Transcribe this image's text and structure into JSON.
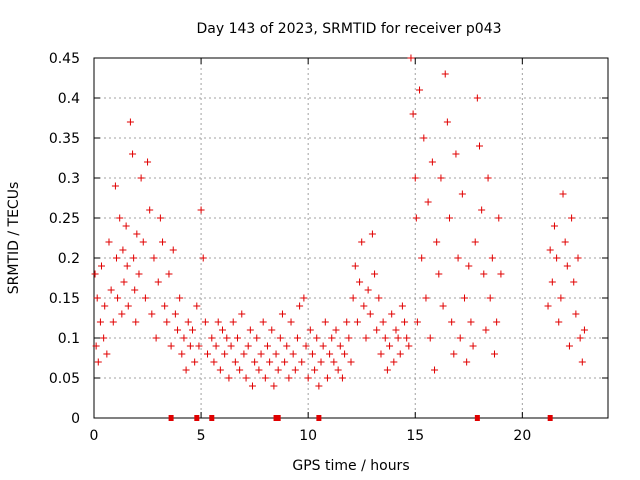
{
  "chart_data": {
    "type": "scatter",
    "title": "Day 143 of 2023, SRMTID for receiver p043",
    "xlabel": "GPS time / hours",
    "ylabel": "SRMTID / TECUs",
    "xlim": [
      0,
      24
    ],
    "ylim": [
      0,
      0.45
    ],
    "xticks": [
      0,
      5,
      10,
      15,
      20
    ],
    "xtick_labels": [
      "0",
      "5",
      "10",
      "15",
      "20"
    ],
    "yticks": [
      0,
      0.05,
      0.1,
      0.15,
      0.2,
      0.25,
      0.3,
      0.35,
      0.4,
      0.45
    ],
    "ytick_labels": [
      "0",
      "0.05",
      "0.1",
      "0.15",
      "0.2",
      "0.25",
      "0.3",
      "0.35",
      "0.4",
      "0.45"
    ],
    "grid": true,
    "marker": "+",
    "color": "#e00000",
    "series": [
      {
        "name": "SRMTID",
        "x": [
          0.05,
          0.1,
          0.15,
          0.2,
          0.3,
          0.35,
          0.45,
          0.5,
          0.6,
          0.7,
          0.8,
          0.9,
          1.0,
          1.05,
          1.1,
          1.2,
          1.3,
          1.35,
          1.4,
          1.5,
          1.55,
          1.6,
          1.7,
          1.8,
          1.85,
          1.9,
          1.95,
          2.0,
          2.1,
          2.2,
          2.3,
          2.4,
          2.5,
          2.6,
          2.7,
          2.8,
          2.9,
          3.0,
          3.1,
          3.2,
          3.3,
          3.4,
          3.5,
          3.6,
          3.7,
          3.8,
          3.9,
          4.0,
          4.1,
          4.2,
          4.3,
          4.4,
          4.5,
          4.6,
          4.7,
          4.8,
          4.9,
          5.0,
          5.1,
          5.2,
          5.3,
          5.5,
          5.6,
          5.7,
          5.8,
          5.9,
          6.0,
          6.1,
          6.2,
          6.3,
          6.4,
          6.5,
          6.6,
          6.7,
          6.8,
          6.9,
          7.0,
          7.1,
          7.2,
          7.3,
          7.4,
          7.5,
          7.6,
          7.7,
          7.8,
          7.9,
          8.0,
          8.1,
          8.2,
          8.3,
          8.4,
          8.5,
          8.6,
          8.7,
          8.8,
          8.9,
          9.0,
          9.1,
          9.2,
          9.3,
          9.4,
          9.5,
          9.6,
          9.7,
          9.8,
          9.9,
          10.0,
          10.1,
          10.2,
          10.3,
          10.4,
          10.5,
          10.6,
          10.7,
          10.8,
          10.9,
          11.0,
          11.1,
          11.2,
          11.3,
          11.4,
          11.5,
          11.6,
          11.7,
          11.8,
          11.9,
          12.0,
          12.1,
          12.2,
          12.3,
          12.4,
          12.5,
          12.6,
          12.7,
          12.8,
          12.9,
          13.0,
          13.1,
          13.2,
          13.3,
          13.4,
          13.5,
          13.6,
          13.7,
          13.8,
          13.9,
          14.0,
          14.1,
          14.2,
          14.3,
          14.4,
          14.5,
          14.6,
          14.7,
          14.8,
          14.9,
          15.0,
          15.05,
          15.1,
          15.2,
          15.3,
          15.4,
          15.5,
          15.6,
          15.7,
          15.8,
          15.9,
          16.0,
          16.1,
          16.2,
          16.3,
          16.4,
          16.5,
          16.6,
          16.7,
          16.8,
          16.9,
          17.0,
          17.1,
          17.2,
          17.3,
          17.4,
          17.5,
          17.6,
          17.7,
          17.8,
          17.9,
          18.0,
          18.1,
          18.2,
          18.3,
          18.4,
          18.5,
          18.6,
          18.7,
          18.8,
          18.9,
          19.0,
          21.2,
          21.3,
          21.4,
          21.5,
          21.6,
          21.7,
          21.8,
          21.9,
          22.0,
          22.1,
          22.2,
          22.3,
          22.4,
          22.5,
          22.6,
          22.7,
          22.8,
          22.9
        ],
        "y": [
          0.18,
          0.09,
          0.15,
          0.07,
          0.12,
          0.19,
          0.1,
          0.14,
          0.08,
          0.22,
          0.16,
          0.12,
          0.29,
          0.2,
          0.15,
          0.25,
          0.13,
          0.21,
          0.17,
          0.24,
          0.19,
          0.14,
          0.37,
          0.33,
          0.2,
          0.16,
          0.12,
          0.23,
          0.18,
          0.3,
          0.22,
          0.15,
          0.32,
          0.26,
          0.13,
          0.2,
          0.1,
          0.17,
          0.25,
          0.22,
          0.14,
          0.12,
          0.18,
          0.09,
          0.21,
          0.13,
          0.11,
          0.15,
          0.08,
          0.1,
          0.06,
          0.12,
          0.09,
          0.11,
          0.07,
          0.14,
          0.09,
          0.26,
          0.2,
          0.12,
          0.08,
          0.1,
          0.07,
          0.09,
          0.12,
          0.06,
          0.11,
          0.08,
          0.1,
          0.05,
          0.09,
          0.12,
          0.07,
          0.1,
          0.06,
          0.13,
          0.08,
          0.05,
          0.09,
          0.11,
          0.04,
          0.07,
          0.1,
          0.06,
          0.08,
          0.12,
          0.05,
          0.09,
          0.07,
          0.11,
          0.04,
          0.08,
          0.06,
          0.1,
          0.13,
          0.07,
          0.09,
          0.05,
          0.12,
          0.08,
          0.06,
          0.1,
          0.14,
          0.07,
          0.15,
          0.09,
          0.05,
          0.11,
          0.08,
          0.06,
          0.1,
          0.04,
          0.07,
          0.09,
          0.12,
          0.05,
          0.08,
          0.1,
          0.07,
          0.11,
          0.06,
          0.09,
          0.05,
          0.08,
          0.12,
          0.1,
          0.07,
          0.15,
          0.19,
          0.12,
          0.17,
          0.22,
          0.14,
          0.1,
          0.16,
          0.13,
          0.23,
          0.18,
          0.11,
          0.15,
          0.08,
          0.12,
          0.1,
          0.06,
          0.09,
          0.13,
          0.07,
          0.11,
          0.1,
          0.08,
          0.14,
          0.12,
          0.1,
          0.09,
          0.45,
          0.38,
          0.3,
          0.25,
          0.12,
          0.41,
          0.2,
          0.35,
          0.15,
          0.27,
          0.1,
          0.32,
          0.06,
          0.22,
          0.18,
          0.3,
          0.14,
          0.43,
          0.37,
          0.25,
          0.12,
          0.08,
          0.33,
          0.2,
          0.1,
          0.28,
          0.15,
          0.07,
          0.19,
          0.12,
          0.09,
          0.22,
          0.4,
          0.34,
          0.26,
          0.18,
          0.11,
          0.3,
          0.15,
          0.2,
          0.08,
          0.12,
          0.25,
          0.18,
          0.14,
          0.21,
          0.17,
          0.24,
          0.2,
          0.12,
          0.15,
          0.28,
          0.22,
          0.19,
          0.09,
          0.25,
          0.17,
          0.13,
          0.2,
          0.1,
          0.07,
          0.11
        ]
      }
    ],
    "tracking_markers_x": [
      3.6,
      4.8,
      5.5,
      8.5,
      8.6,
      10.5,
      17.9,
      21.3
    ]
  }
}
